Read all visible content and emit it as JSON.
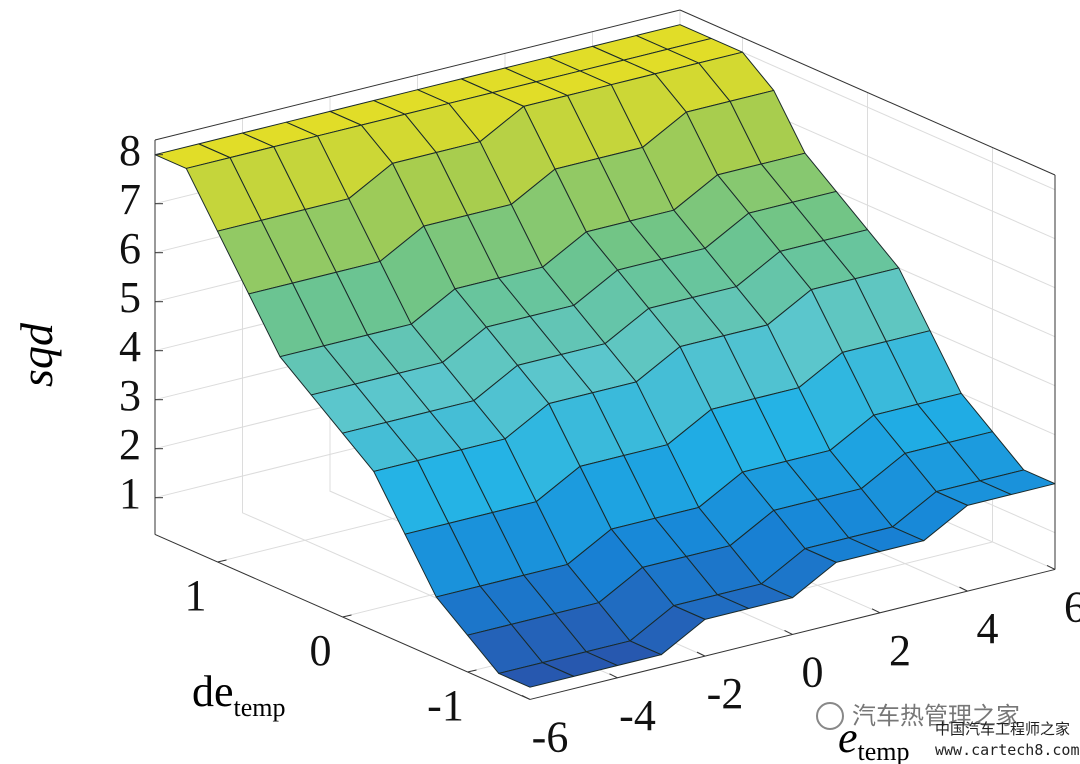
{
  "chart_data": {
    "type": "surface",
    "x_label": "e",
    "x_label_sub": "temp",
    "y_label": "de",
    "y_label_sub": "temp",
    "z_label": "sqd",
    "x": [
      -6,
      -5,
      -4,
      -3,
      -2,
      -1,
      0,
      1,
      2,
      3,
      4,
      5,
      6
    ],
    "y": [
      -1.5,
      -1.25,
      -1,
      -0.75,
      -0.5,
      -0.25,
      0,
      0.25,
      0.5,
      0.75,
      1,
      1.25,
      1.5
    ],
    "z": [
      [
        0.5,
        0.5,
        0.5,
        0.5,
        1,
        1,
        1,
        1.5,
        1.5,
        1.5,
        2,
        2,
        2
      ],
      [
        0.5,
        0.5,
        0.5,
        0.5,
        1,
        1,
        1,
        1.5,
        1.5,
        1.5,
        2,
        2,
        2
      ],
      [
        1,
        1,
        1,
        1,
        1.5,
        1.5,
        1.5,
        2,
        2,
        2,
        2.5,
        2.5,
        2.5
      ],
      [
        1.5,
        1.5,
        1.5,
        1.5,
        2,
        2,
        2,
        2.5,
        2.5,
        2.5,
        3,
        3,
        3
      ],
      [
        2.5,
        2.5,
        2.5,
        2.5,
        3,
        3,
        3,
        3.5,
        3.5,
        3.5,
        4,
        4,
        4
      ],
      [
        3.5,
        3.5,
        3.5,
        3.5,
        4,
        4,
        4,
        4.5,
        4.5,
        4.5,
        5,
        5,
        5
      ],
      [
        4,
        4,
        4,
        4,
        4.5,
        4.5,
        4.5,
        5,
        5,
        5,
        5.5,
        5.5,
        5.5
      ],
      [
        4.5,
        4.5,
        4.5,
        4.5,
        5,
        5,
        5,
        5.5,
        5.5,
        5.5,
        6,
        6,
        6
      ],
      [
        5,
        5,
        5,
        5,
        5.5,
        5.5,
        5.5,
        6,
        6,
        6,
        6.5,
        6.5,
        6.5
      ],
      [
        6,
        6,
        6,
        6,
        6.5,
        6.5,
        6.5,
        7,
        7,
        7,
        7.5,
        7.5,
        7.5
      ],
      [
        7,
        7,
        7,
        7,
        7.5,
        7.5,
        7.5,
        8,
        8,
        8,
        8,
        8,
        8
      ],
      [
        8,
        8,
        8,
        8,
        8,
        8,
        8,
        8,
        8,
        8,
        8,
        8,
        8
      ],
      [
        8,
        8,
        8,
        8,
        8,
        8,
        8,
        8,
        8,
        8,
        8,
        8,
        8
      ]
    ],
    "xlim": [
      -6,
      6
    ],
    "ylim": [
      -1.5,
      1.5
    ],
    "zlim": [
      0.25,
      8.3
    ],
    "xticks": [
      -6,
      -4,
      -2,
      0,
      2,
      4,
      6
    ],
    "yticks": [
      -1,
      0,
      1
    ],
    "zticks": [
      1,
      2,
      3,
      4,
      5,
      6,
      7,
      8
    ],
    "grid": true,
    "colormap": [
      "#2b4ea6",
      "#1784d6",
      "#22b2e6",
      "#5cc6cc",
      "#6cc48c",
      "#a6cc50",
      "#f2e21c"
    ],
    "edge_color": "#1a2a2a"
  },
  "watermark": {
    "account": "汽车热管理之家",
    "site_name": "中国汽车工程师之家",
    "url": "www.cartech8.com"
  }
}
